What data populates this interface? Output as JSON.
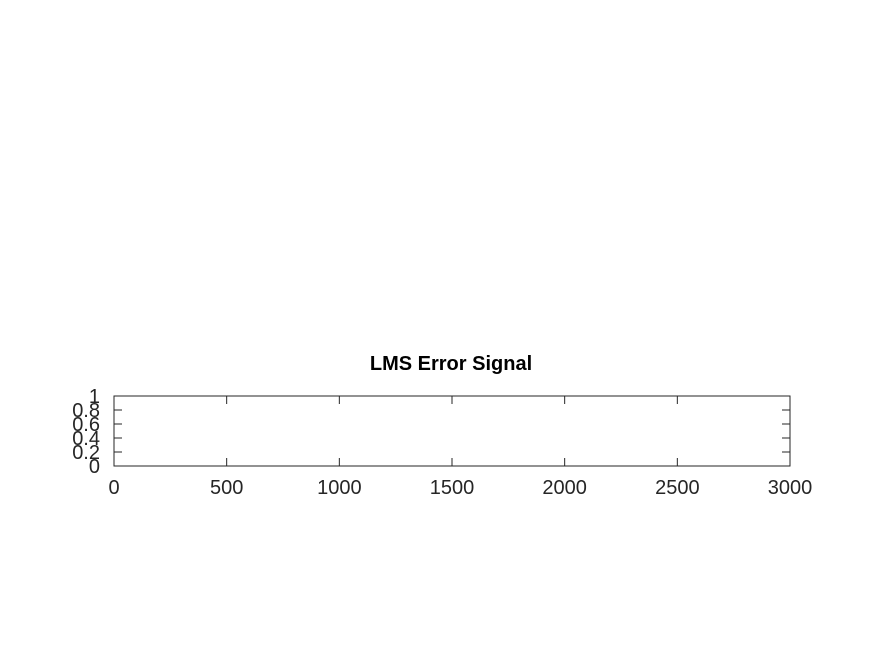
{
  "chart_data": {
    "type": "line",
    "title": "LMS Error Signal",
    "xlabel": "",
    "ylabel": "",
    "xlim": [
      0,
      3000
    ],
    "ylim": [
      0,
      1
    ],
    "x_ticks": [
      0,
      500,
      1000,
      1500,
      2000,
      2500,
      3000
    ],
    "x_tick_labels": [
      "0",
      "500",
      "1000",
      "1500",
      "2000",
      "2500",
      "3000"
    ],
    "y_ticks": [
      0,
      0.2,
      0.4,
      0.6,
      0.8,
      1
    ],
    "y_tick_labels": [
      "0",
      "0.2",
      "0.4",
      "0.6",
      "0.8",
      "1"
    ],
    "grid": false,
    "series": [],
    "colors": {
      "axis": "#262626",
      "title": "#000000",
      "background": "#ffffff"
    }
  }
}
